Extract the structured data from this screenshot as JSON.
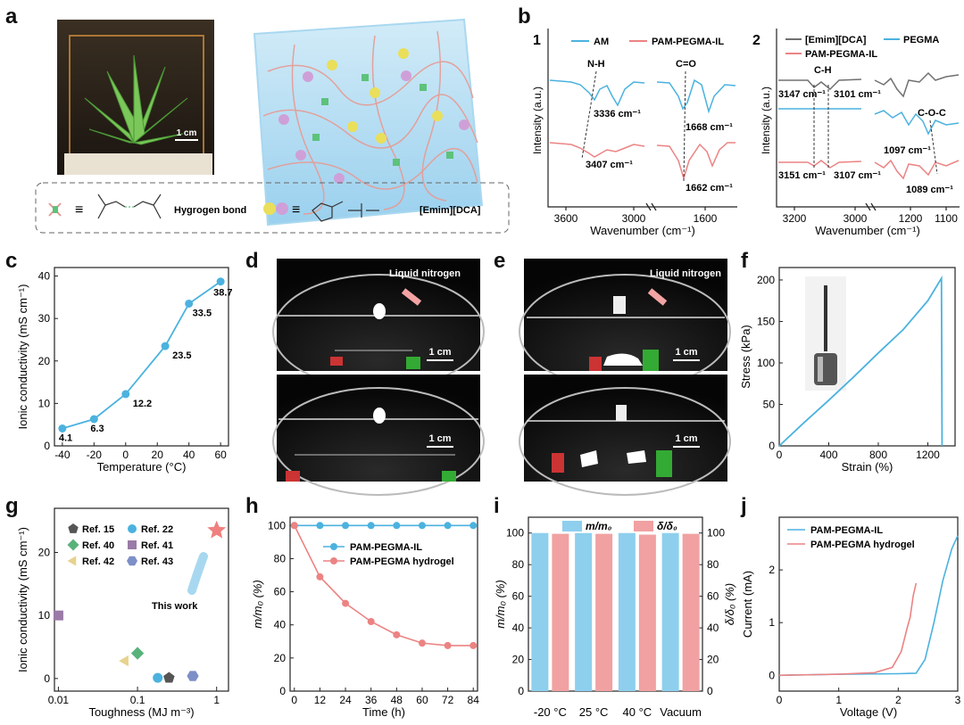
{
  "colors": {
    "blue": "#4bb2df",
    "red": "#ec8383",
    "gray": "#707070",
    "axis": "#222222",
    "bar_blue": "#8ecfee",
    "bar_red": "#f1a1a1",
    "star": "#f08080"
  },
  "panel_letters": [
    "a",
    "b",
    "c",
    "d",
    "e",
    "f",
    "g",
    "h",
    "i",
    "j"
  ],
  "panel_a": {
    "photo_scale": "1 cm",
    "legend": {
      "hydrogen_bond": "Hygrogen bond",
      "ionic_liquid": "[Emim][DCA]",
      "equiv": "≡"
    }
  },
  "panel_b": {
    "sub1_label": "1",
    "sub2_label": "2",
    "annotations_1": [
      "N-H",
      "C=O",
      "3336 cm⁻¹",
      "3407 cm⁻¹",
      "1668 cm⁻¹",
      "1662 cm⁻¹"
    ],
    "annotations_2": [
      "C-H",
      "C-O-C",
      "3147 cm⁻¹",
      "3101 cm⁻¹",
      "3151 cm⁻¹",
      "3107 cm⁻¹",
      "1097 cm⁻¹",
      "1089 cm⁻¹"
    ]
  },
  "panel_d": {
    "label": "Liquid nitrogen",
    "scale": "1 cm"
  },
  "panel_e": {
    "label": "Liquid nitrogen",
    "scale": "1 cm"
  },
  "chart_data": [
    {
      "id": "b1",
      "type": "line",
      "xlabel": "Wavenumber (cm⁻¹)",
      "ylabel": "Intensity (a.u.)",
      "xticks": [
        "3600",
        "3000",
        "1600"
      ],
      "series": [
        {
          "name": "AM",
          "color": "blue"
        },
        {
          "name": "PAM-PEGMA-IL",
          "color": "red"
        }
      ]
    },
    {
      "id": "b2",
      "type": "line",
      "xlabel": "Wavenumber (cm⁻¹)",
      "ylabel": "Intensity (a.u.)",
      "xticks": [
        "3200",
        "3000",
        "1200",
        "1100"
      ],
      "series": [
        {
          "name": "[Emim][DCA]",
          "color": "gray"
        },
        {
          "name": "PEGMA",
          "color": "blue"
        },
        {
          "name": "PAM-PEGMA-IL",
          "color": "red"
        }
      ]
    },
    {
      "id": "c",
      "type": "line",
      "xlabel": "Temperature (°C)",
      "ylabel": "Ionic conductivity (mS cm⁻¹)",
      "xlim": [
        -45,
        65
      ],
      "ylim": [
        0,
        42
      ],
      "xticks": [
        -40,
        -20,
        0,
        20,
        40,
        60
      ],
      "yticks": [
        0,
        10,
        20,
        30,
        40
      ],
      "x": [
        -40,
        -20,
        0,
        25,
        40,
        60
      ],
      "y": [
        4.1,
        6.3,
        12.2,
        23.5,
        33.5,
        38.7
      ],
      "data_labels": [
        "4.1",
        "6.3",
        "12.2",
        "23.5",
        "33.5",
        "38.7"
      ]
    },
    {
      "id": "f",
      "type": "line",
      "xlabel": "Strain (%)",
      "ylabel": "Stress (kPa)",
      "xlim": [
        0,
        1420
      ],
      "ylim": [
        0,
        215
      ],
      "xticks": [
        0,
        400,
        800,
        1200
      ],
      "yticks": [
        0,
        50,
        100,
        150,
        200
      ],
      "x": [
        0,
        200,
        400,
        600,
        800,
        1000,
        1200,
        1310,
        1315
      ],
      "y": [
        0,
        28,
        55,
        83,
        112,
        140,
        175,
        202,
        0
      ]
    },
    {
      "id": "g",
      "type": "scatter",
      "xlabel": "Toughness (MJ m⁻³)",
      "ylabel": "Ionic conductivity (mS cm⁻¹)",
      "xscale": "log",
      "xticks": [
        "0.01",
        "0.1",
        "1"
      ],
      "yticks": [
        0,
        10,
        20
      ],
      "ylim": [
        -2,
        27
      ],
      "annotation": "This work",
      "points": [
        {
          "name": "Ref. 15",
          "x": 0.25,
          "y": 0.1,
          "marker": "pentagon",
          "color": "#555555"
        },
        {
          "name": "Ref. 22",
          "x": 0.18,
          "y": 0.1,
          "marker": "circle",
          "color": "#4bb2df"
        },
        {
          "name": "Ref. 40",
          "x": 0.1,
          "y": 4.0,
          "marker": "diamond",
          "color": "#58b27a"
        },
        {
          "name": "Ref. 41",
          "x": 0.01,
          "y": 10.0,
          "marker": "square",
          "color": "#9a7aa6"
        },
        {
          "name": "Ref. 42",
          "x": 0.07,
          "y": 2.8,
          "marker": "triangle",
          "color": "#e8d28e"
        },
        {
          "name": "Ref. 43",
          "x": 0.5,
          "y": 0.4,
          "marker": "hexagon",
          "color": "#7d8fc7"
        },
        {
          "name": "This work",
          "x": 1.0,
          "y": 23.5,
          "marker": "star",
          "color": "#f08080"
        }
      ]
    },
    {
      "id": "h",
      "type": "line",
      "xlabel": "Time (h)",
      "ylabel": "m/m₀ (%)",
      "xlim": [
        -2,
        86
      ],
      "ylim": [
        0,
        105
      ],
      "xticks": [
        0,
        12,
        24,
        36,
        48,
        60,
        72,
        84
      ],
      "yticks": [
        0,
        20,
        40,
        60,
        80,
        100
      ],
      "x": [
        0,
        12,
        24,
        36,
        48,
        60,
        72,
        84
      ],
      "series": [
        {
          "name": "PAM-PEGMA-IL",
          "color": "blue",
          "values": [
            100,
            100,
            100,
            100,
            100,
            100,
            100,
            100
          ]
        },
        {
          "name": "PAM-PEGMA hydrogel",
          "color": "red",
          "values": [
            100,
            69,
            53,
            42,
            34,
            29,
            27.5,
            27.5
          ]
        }
      ]
    },
    {
      "id": "i",
      "type": "bar",
      "categories": [
        "-20 °C",
        "25 °C",
        "40 °C",
        "Vacuum"
      ],
      "ylabel": "m/m₀ (%)",
      "y2label": "δ/δ₀ (%)",
      "ylim": [
        0,
        110
      ],
      "yticks": [
        0,
        20,
        40,
        60,
        80,
        100
      ],
      "series": [
        {
          "name": "m/m₀",
          "color": "bar_blue",
          "values": [
            100,
            100,
            100,
            100
          ]
        },
        {
          "name": "δ/δ₀",
          "color": "bar_red",
          "values": [
            99.5,
            99.5,
            99,
            99.5
          ]
        }
      ]
    },
    {
      "id": "j",
      "type": "line",
      "xlabel": "Voltage (V)",
      "ylabel": "Current (mA)",
      "xlim": [
        0,
        3
      ],
      "ylim": [
        -0.3,
        3.0
      ],
      "xticks": [
        0,
        1,
        2,
        3
      ],
      "yticks": [
        0,
        1,
        2
      ],
      "series": [
        {
          "name": "PAM-PEGMA-IL",
          "color": "blue",
          "x": [
            0,
            1.0,
            2.0,
            2.3,
            2.45,
            2.6,
            2.75,
            2.9,
            3.0
          ],
          "y": [
            0,
            0.02,
            0.03,
            0.04,
            0.3,
            1.0,
            1.8,
            2.4,
            2.65
          ]
        },
        {
          "name": "PAM-PEGMA hydrogel",
          "color": "red",
          "x": [
            0,
            1.0,
            1.6,
            1.9,
            2.05,
            2.15,
            2.2,
            2.25,
            2.3
          ],
          "y": [
            0,
            0.02,
            0.05,
            0.15,
            0.45,
            0.9,
            1.1,
            1.5,
            1.75
          ]
        }
      ]
    }
  ]
}
